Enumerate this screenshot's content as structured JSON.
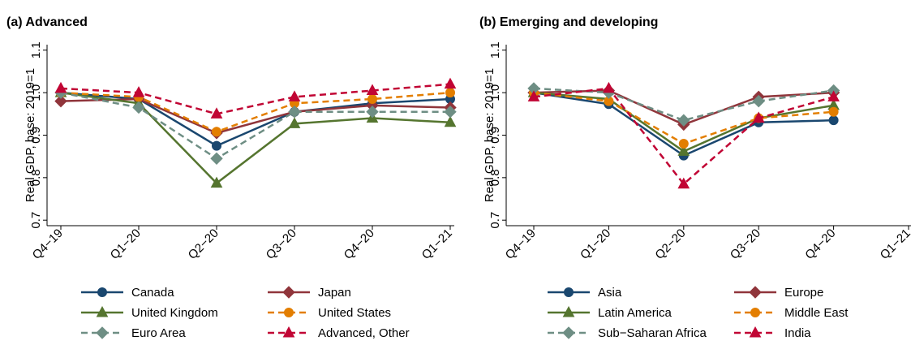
{
  "chart_data": [
    {
      "type": "line",
      "title": "(a) Advanced",
      "ylabel": "Real GDP, base: 2019=1",
      "categories": [
        "Q4−19",
        "Q1−20",
        "Q2−20",
        "Q3−20",
        "Q4−20",
        "Q1−21"
      ],
      "ylim": [
        0.687,
        1.113
      ],
      "yticks": [
        0.7,
        0.8,
        0.9,
        {
          "value": 1,
          "label": "1.0"
        },
        1.1
      ],
      "series": [
        {
          "name": "Canada",
          "color": "#1a476f",
          "marker": "circle",
          "dashed": false,
          "values": [
            1.0,
            0.985,
            0.875,
            0.955,
            0.975,
            0.985
          ]
        },
        {
          "name": "Japan",
          "color": "#90353b",
          "marker": "diamond",
          "dashed": false,
          "values": [
            0.98,
            0.985,
            0.905,
            0.955,
            0.97,
            0.965
          ]
        },
        {
          "name": "United Kingdom",
          "color": "#55752f",
          "marker": "triangle",
          "dashed": false,
          "values": [
            1.0,
            0.975,
            0.787,
            0.927,
            0.94,
            0.93
          ]
        },
        {
          "name": "United States",
          "color": "#e37e00",
          "marker": "circle",
          "dashed": true,
          "values": [
            1.0,
            0.99,
            0.908,
            0.975,
            0.985,
            1.0
          ]
        },
        {
          "name": "Euro Area",
          "color": "#6e8e84",
          "marker": "diamond",
          "dashed": true,
          "values": [
            1.0,
            0.965,
            0.845,
            0.955,
            0.955,
            0.955
          ]
        },
        {
          "name": "Advanced, Other",
          "color": "#c10534",
          "marker": "triangle",
          "dashed": true,
          "values": [
            1.01,
            1.0,
            0.95,
            0.99,
            1.005,
            1.02
          ]
        }
      ]
    },
    {
      "type": "line",
      "title": "(b) Emerging and developing",
      "ylabel": "Real GDP, base: 2019=1",
      "categories": [
        "Q4−19",
        "Q1−20",
        "Q2−20",
        "Q3−20",
        "Q4−20",
        "Q1−21"
      ],
      "ylim": [
        0.687,
        1.113
      ],
      "yticks": [
        0.7,
        0.8,
        0.9,
        {
          "value": 1,
          "label": "1.0"
        },
        1.1
      ],
      "series": [
        {
          "name": "Asia",
          "color": "#1a476f",
          "marker": "circle",
          "dashed": false,
          "values": [
            1.0,
            0.973,
            0.852,
            0.93,
            0.935,
            null
          ]
        },
        {
          "name": "Europe",
          "color": "#90353b",
          "marker": "diamond",
          "dashed": false,
          "values": [
            1.0,
            1.005,
            0.925,
            0.99,
            1.0,
            null
          ]
        },
        {
          "name": "Latin America",
          "color": "#55752f",
          "marker": "triangle",
          "dashed": false,
          "values": [
            1.0,
            0.985,
            0.862,
            0.94,
            0.97,
            null
          ]
        },
        {
          "name": "Middle East",
          "color": "#e37e00",
          "marker": "circle",
          "dashed": true,
          "values": [
            1.0,
            0.98,
            0.88,
            0.94,
            0.955,
            null
          ]
        },
        {
          "name": "Sub−Saharan Africa",
          "color": "#6e8e84",
          "marker": "diamond",
          "dashed": true,
          "values": [
            1.01,
            1.0,
            0.935,
            0.98,
            1.005,
            null
          ]
        },
        {
          "name": "India",
          "color": "#c10534",
          "marker": "triangle",
          "dashed": true,
          "values": [
            0.99,
            1.01,
            0.785,
            0.94,
            0.99,
            null
          ]
        }
      ]
    }
  ]
}
